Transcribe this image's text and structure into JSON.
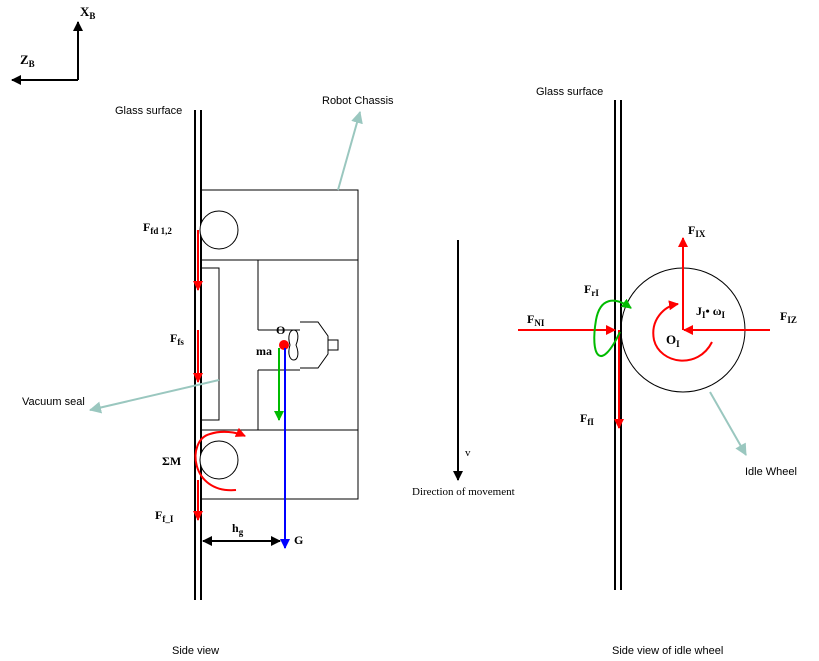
{
  "axes": {
    "xb": "X",
    "xb_sub": "B",
    "zb": "Z",
    "zb_sub": "B"
  },
  "labels": {
    "glass_surface_left": "Glass surface",
    "robot_chassis": "Robot Chassis",
    "glass_surface_right": "Glass surface",
    "vacuum_seal": "Vacuum seal",
    "idle_wheel": "Idle Wheel",
    "side_view": "Side view",
    "side_view_idle": "Side view of idle wheel",
    "direction_of_movement": "Direction of movement",
    "v": "v"
  },
  "forces_left": {
    "ffd_main": "F",
    "ffd_sub": "fd 1,2",
    "ffs_main": "F",
    "ffs_sub": "fs",
    "sum_m": "ΣM",
    "ffi_main": "F",
    "ffi_sub": "f_I",
    "o": "O",
    "ma": "ma",
    "hg_main": "h",
    "hg_sub": "g",
    "g": "G"
  },
  "forces_right": {
    "fix_main": "F",
    "fix_sub": "IX",
    "fri_main": "F",
    "fri_sub": "rI",
    "fni_main": "F",
    "fni_sub": "NI",
    "fiz_main": "F",
    "fiz_sub": "IZ",
    "ji_main": "J",
    "ji_sub": "I",
    "omega_main": "• ω",
    "omega_sub": "I",
    "oi_main": "O",
    "oi_sub": "I",
    "ffi_main": "F",
    "ffi_sub": "fI"
  },
  "colors": {
    "red": "#ff0000",
    "green": "#00bb00",
    "blue": "#0000ff",
    "teal": "#9ac7bf",
    "black": "#000000"
  }
}
